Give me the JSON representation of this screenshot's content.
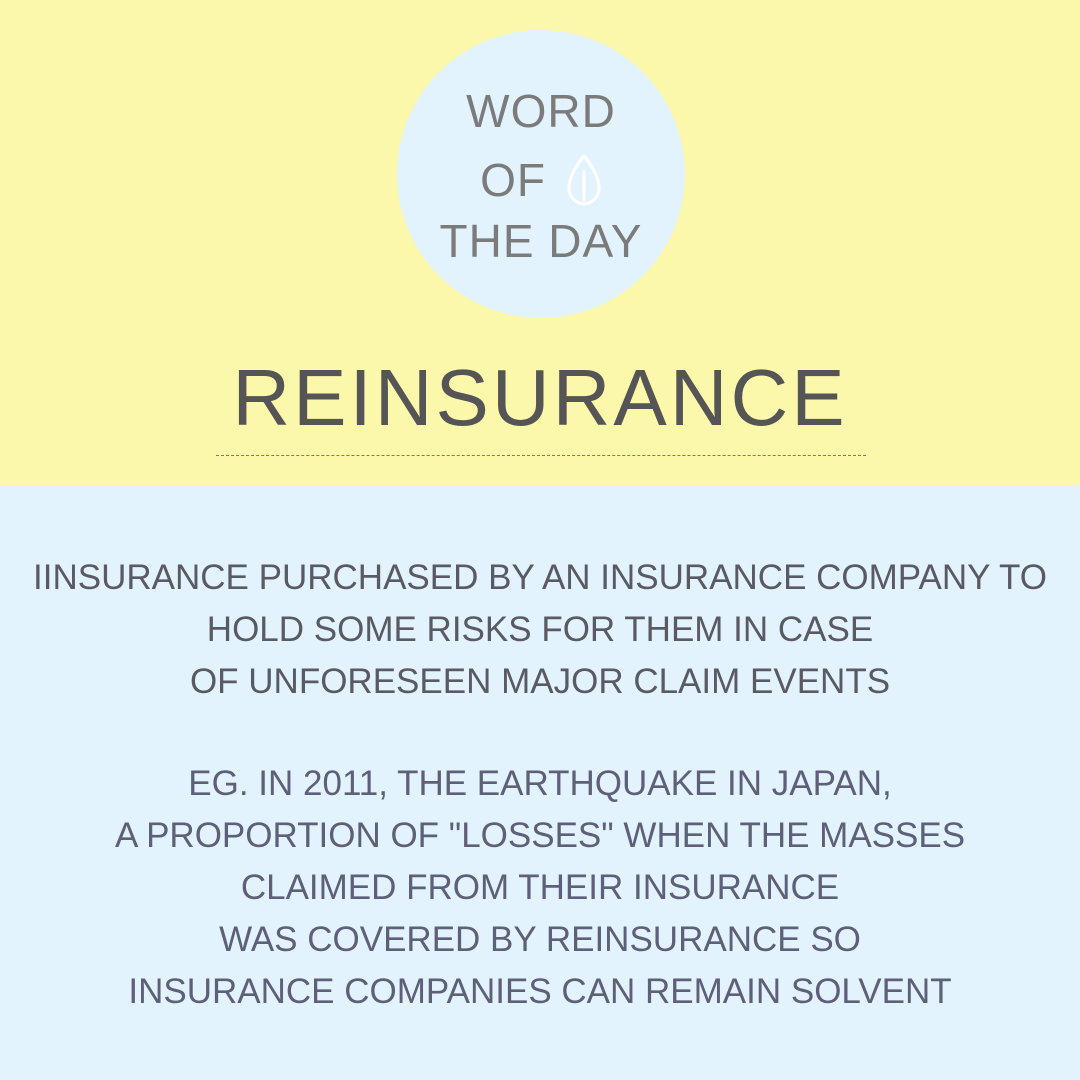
{
  "colors": {
    "top_background": "#fbf7ab",
    "bottom_background": "#e3f3fd",
    "badge_background": "#e3f3fd",
    "badge_text": "#7b7b7b",
    "headword_text": "#555555",
    "body_text": "#5a5a64"
  },
  "badge": {
    "line1": "WORD",
    "line2": "OF",
    "line3": "THE DAY",
    "icon": "leaf-icon"
  },
  "headword": "REINSURANCE",
  "definition": {
    "lines": [
      "IINSURANCE PURCHASED BY AN INSURANCE COMPANY TO",
      "HOLD SOME RISKS FOR THEM IN CASE",
      "OF UNFORESEEN MAJOR CLAIM EVENTS"
    ]
  },
  "example": {
    "lines": [
      "EG. IN 2011, THE EARTHQUAKE IN JAPAN,",
      "A PROPORTION OF \"LOSSES\" WHEN THE MASSES",
      "CLAIMED FROM THEIR INSURANCE",
      "WAS COVERED BY REINSURANCE SO",
      "INSURANCE COMPANIES CAN REMAIN SOLVENT"
    ]
  }
}
